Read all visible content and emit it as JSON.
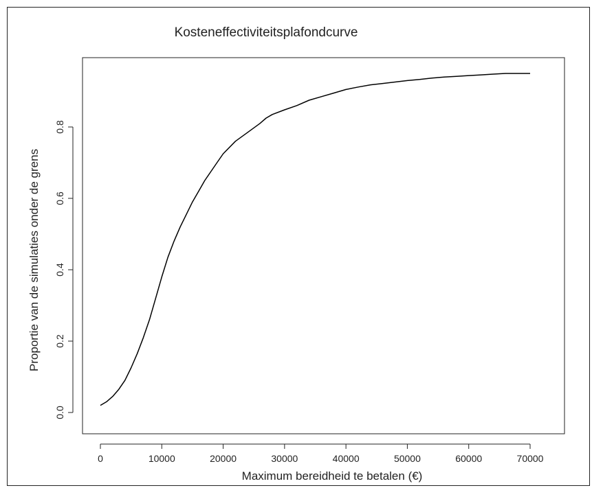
{
  "chart_data": {
    "type": "line",
    "title": "Kosteneffectiviteitsplafondcurve",
    "xlabel": "Maximum bereidheid te betalen (€)",
    "ylabel": "Proportie van de simulaties onder de grens",
    "xlim": [
      0,
      70000
    ],
    "ylim": [
      0,
      0.95
    ],
    "x_ticks": [
      "0",
      "10000",
      "20000",
      "30000",
      "40000",
      "50000",
      "60000",
      "70000"
    ],
    "y_ticks": [
      "0.0",
      "0.2",
      "0.4",
      "0.6",
      "0.8"
    ],
    "grid": false,
    "legend": "none",
    "series": [
      {
        "color": "#000000",
        "x": [
          0,
          1000,
          2000,
          3000,
          4000,
          5000,
          6000,
          7000,
          8000,
          9000,
          10000,
          11000,
          12000,
          13000,
          14000,
          15000,
          16000,
          17000,
          18000,
          19000,
          20000,
          22000,
          24000,
          26000,
          27000,
          28000,
          30000,
          32000,
          34000,
          36000,
          38000,
          40000,
          42000,
          44000,
          46000,
          48000,
          50000,
          52000,
          54000,
          56000,
          58000,
          60000,
          62000,
          64000,
          66000,
          68000,
          70000
        ],
        "y": [
          0.02,
          0.03,
          0.045,
          0.065,
          0.09,
          0.125,
          0.165,
          0.21,
          0.26,
          0.32,
          0.38,
          0.435,
          0.48,
          0.52,
          0.555,
          0.59,
          0.62,
          0.65,
          0.675,
          0.7,
          0.725,
          0.76,
          0.785,
          0.81,
          0.825,
          0.835,
          0.848,
          0.86,
          0.875,
          0.885,
          0.895,
          0.905,
          0.912,
          0.918,
          0.922,
          0.926,
          0.93,
          0.933,
          0.937,
          0.94,
          0.942,
          0.944,
          0.946,
          0.948,
          0.95,
          0.95,
          0.95
        ]
      }
    ]
  }
}
